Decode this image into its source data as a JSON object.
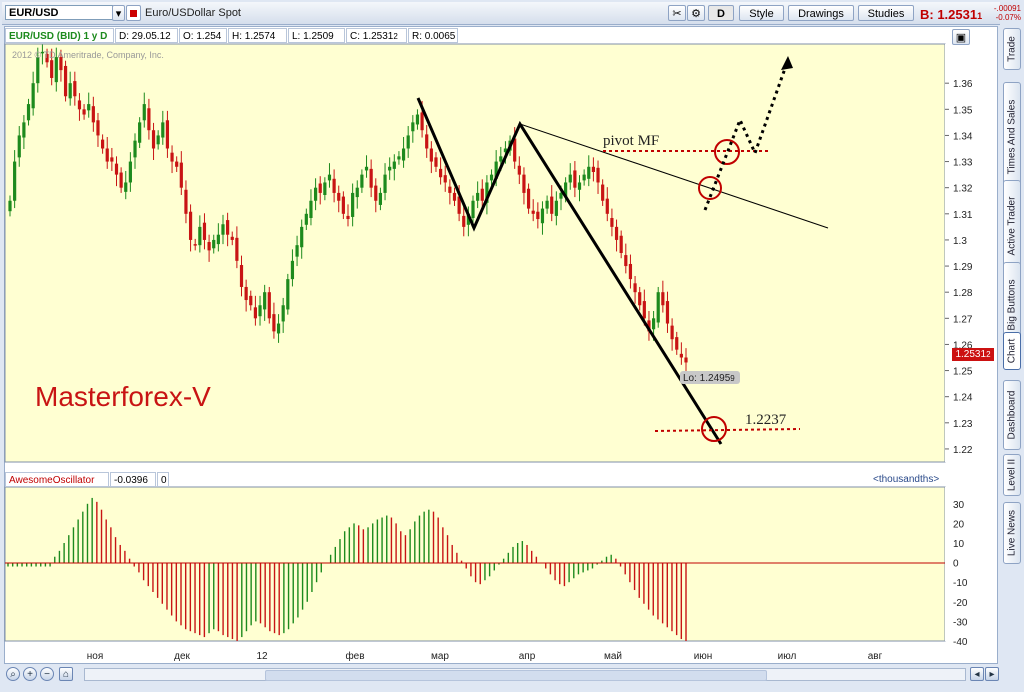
{
  "toolbar": {
    "symbol": "EUR/USD",
    "description": "Euro/USDollar Spot",
    "d_label": "D",
    "style_label": "Style",
    "drawings_label": "Drawings",
    "studies_label": "Studies",
    "bid_label": "B: 1.2531",
    "bid_sub": "1",
    "change_abs": "-.00091",
    "change_pct": "-0.07%"
  },
  "info": {
    "title": "EUR/USD (BID) 1 y D",
    "date": "D: 29.05.12",
    "open": "O: 1.254",
    "high": "H: 1.2574",
    "low": "L: 1.2509",
    "close": "C: 1.2531",
    "close_sub": "2",
    "range": "R: 0.0065",
    "watermark": "2012 © TD Ameritrade, Company, Inc."
  },
  "oscillator": {
    "name": "AwesomeOscillator",
    "value": "-0.0396",
    "zero": "0",
    "units": "<thousandths>"
  },
  "side_tabs": [
    "Trade",
    "Times And Sales",
    "Active Trader",
    "Big Buttons",
    "Chart",
    "Dashboard",
    "Level II",
    "Live News"
  ],
  "annotations": {
    "brand": "Masterforex-V",
    "pivot": "pivot MF",
    "target": "1.2237",
    "low_label": "Lo: 1.2495",
    "low_sub": "9",
    "last_price": "1.2531",
    "last_sub": "2"
  },
  "colors": {
    "up": "#1d8a1d",
    "down": "#c81414",
    "panel": "#ffffd2",
    "accent": "#c00000"
  },
  "chart_data": [
    {
      "type": "candlestick",
      "title": "EUR/USD (BID) 1 y D",
      "ylim": [
        1.215,
        1.375
      ],
      "y_ticks": [
        1.22,
        1.23,
        1.24,
        1.25,
        1.26,
        1.27,
        1.28,
        1.29,
        1.3,
        1.31,
        1.32,
        1.33,
        1.34,
        1.35,
        1.36
      ],
      "x_ticks": [
        "ноя",
        "дек",
        "12",
        "фев",
        "мар",
        "апр",
        "май",
        "июн",
        "июл",
        "авг"
      ],
      "closes": [
        1.315,
        1.33,
        1.34,
        1.345,
        1.352,
        1.36,
        1.37,
        1.372,
        1.368,
        1.362,
        1.37,
        1.365,
        1.355,
        1.36,
        1.355,
        1.35,
        1.348,
        1.352,
        1.345,
        1.34,
        1.335,
        1.33,
        1.33,
        1.325,
        1.32,
        1.322,
        1.33,
        1.338,
        1.345,
        1.352,
        1.342,
        1.335,
        1.34,
        1.345,
        1.335,
        1.33,
        1.328,
        1.32,
        1.31,
        1.3,
        1.298,
        1.305,
        1.3,
        1.296,
        1.3,
        1.302,
        1.306,
        1.302,
        1.3,
        1.292,
        1.282,
        1.277,
        1.275,
        1.27,
        1.275,
        1.28,
        1.27,
        1.265,
        1.268,
        1.275,
        1.285,
        1.292,
        1.298,
        1.305,
        1.31,
        1.315,
        1.32,
        1.318,
        1.322,
        1.325,
        1.318,
        1.315,
        1.31,
        1.308,
        1.318,
        1.32,
        1.325,
        1.328,
        1.32,
        1.315,
        1.318,
        1.325,
        1.328,
        1.33,
        1.332,
        1.335,
        1.34,
        1.345,
        1.348,
        1.342,
        1.335,
        1.33,
        1.328,
        1.324,
        1.322,
        1.318,
        1.315,
        1.31,
        1.305,
        1.31,
        1.315,
        1.318,
        1.315,
        1.322,
        1.325,
        1.33,
        1.332,
        1.335,
        1.338,
        1.33,
        1.325,
        1.318,
        1.312,
        1.31,
        1.308,
        1.312,
        1.315,
        1.31,
        1.315,
        1.318,
        1.322,
        1.325,
        1.32,
        1.322,
        1.325,
        1.328,
        1.326,
        1.322,
        1.315,
        1.31,
        1.305,
        1.3,
        1.295,
        1.29,
        1.285,
        1.28,
        1.275,
        1.27,
        1.265,
        1.27,
        1.28,
        1.275,
        1.268,
        1.262,
        1.258,
        1.255,
        1.2531
      ],
      "lows": {
        "Lo": 1.2495
      },
      "annotations": {
        "pivot": "pivot MF",
        "pivot_level": 1.328,
        "target": 1.2237
      }
    },
    {
      "type": "bar",
      "title": "AwesomeOscillator",
      "units": "thousandths",
      "ylim": [
        -40,
        35
      ],
      "y_ticks": [
        30,
        20,
        10,
        0,
        -10,
        -20,
        -30,
        -40
      ],
      "last_value": -0.0396,
      "values": [
        -2,
        -2,
        -2,
        -2,
        -2,
        -2,
        -2,
        -2,
        -2,
        -2,
        3,
        6,
        10,
        14,
        18,
        22,
        26,
        30,
        33,
        31,
        27,
        22,
        18,
        13,
        9,
        6,
        2,
        -2,
        -5,
        -9,
        -12,
        -15,
        -18,
        -21,
        -24,
        -27,
        -30,
        -32,
        -34,
        -35,
        -36,
        -37,
        -38,
        -36,
        -34,
        -35,
        -37,
        -38,
        -39,
        -40,
        -38,
        -35,
        -32,
        -30,
        -31,
        -33,
        -35,
        -36,
        -37,
        -36,
        -34,
        -31,
        -28,
        -24,
        -20,
        -15,
        -10,
        -5,
        0,
        4,
        8,
        12,
        16,
        18,
        20,
        19,
        17,
        18,
        20,
        22,
        23,
        24,
        23,
        20,
        16,
        14,
        17,
        21,
        24,
        26,
        27,
        26,
        23,
        18,
        14,
        9,
        5,
        1,
        -3,
        -7,
        -10,
        -11,
        -9,
        -7,
        -4,
        -1,
        2,
        5,
        8,
        10,
        11,
        9,
        6,
        3,
        0,
        -3,
        -6,
        -9,
        -11,
        -12,
        -10,
        -8,
        -6,
        -5,
        -4,
        -3,
        -1,
        1,
        3,
        4,
        2,
        -2,
        -6,
        -10,
        -14,
        -18,
        -21,
        -24,
        -27,
        -29,
        -31,
        -33,
        -35,
        -37,
        -39,
        -40
      ]
    }
  ]
}
